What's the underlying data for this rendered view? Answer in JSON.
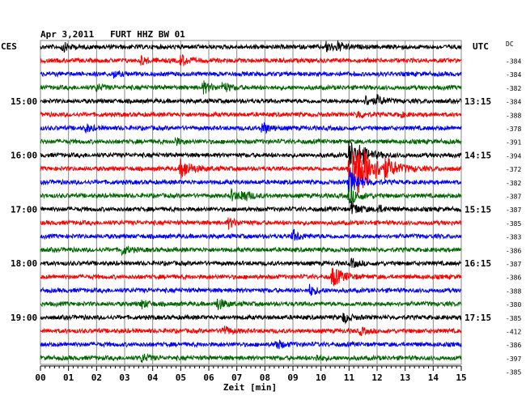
{
  "header": {
    "title": "Apr 3,2011   FURT HHZ BW 01",
    "left_tz": "CES",
    "right_tz": "UTC",
    "dc_label": "DC"
  },
  "colors": {
    "trace_cycle": [
      "#000000",
      "#ff0000",
      "#0000ff",
      "#006600"
    ],
    "grid": "#888888",
    "text": "#000000"
  },
  "chart_data": {
    "type": "line",
    "title": "Apr 3,2011   FURT HHZ BW 01",
    "xlabel": "Zeit [min]",
    "ylabel": "",
    "x_ticks": [
      "00",
      "01",
      "02",
      "03",
      "04",
      "05",
      "06",
      "07",
      "08",
      "09",
      "10",
      "11",
      "12",
      "13",
      "14",
      "15"
    ],
    "xlim": [
      0,
      15
    ],
    "left_hour_labels": [
      "15:00",
      "16:00",
      "17:00",
      "18:00",
      "19:00"
    ],
    "right_hour_labels": [
      "13:15",
      "14:15",
      "15:15",
      "16:15",
      "17:15"
    ],
    "hour_label_trace_index": [
      4,
      8,
      12,
      16,
      20
    ],
    "traces": [
      {
        "dc": "-384",
        "events": [
          {
            "t": 0.8,
            "a": 5
          },
          {
            "t": 10.2,
            "a": 6
          },
          {
            "t": 10.6,
            "a": 5
          }
        ]
      },
      {
        "dc": "-384",
        "events": [
          {
            "t": 5.0,
            "a": 7
          },
          {
            "t": 3.6,
            "a": 5
          }
        ]
      },
      {
        "dc": "-382",
        "events": [
          {
            "t": 2.6,
            "a": 4
          }
        ]
      },
      {
        "dc": "-384",
        "events": [
          {
            "t": 5.8,
            "a": 7
          },
          {
            "t": 6.5,
            "a": 6
          },
          {
            "t": 2.0,
            "a": 4
          }
        ]
      },
      {
        "dc": "-388",
        "events": [
          {
            "t": 11.6,
            "a": 6
          },
          {
            "t": 12.0,
            "a": 5
          }
        ]
      },
      {
        "dc": "-378",
        "events": [
          {
            "t": 11.3,
            "a": 5
          },
          {
            "t": 12.8,
            "a": 3
          }
        ]
      },
      {
        "dc": "-391",
        "events": [
          {
            "t": 1.6,
            "a": 5
          },
          {
            "t": 7.9,
            "a": 7
          }
        ]
      },
      {
        "dc": "-394",
        "events": [
          {
            "t": 4.8,
            "a": 4
          }
        ]
      },
      {
        "dc": "-372",
        "events": [
          {
            "t": 11.0,
            "a": 18
          },
          {
            "t": 11.4,
            "a": 5
          }
        ]
      },
      {
        "dc": "-382",
        "events": [
          {
            "t": 5.0,
            "a": 12
          },
          {
            "t": 11.0,
            "a": 32
          },
          {
            "t": 11.3,
            "a": 14
          },
          {
            "t": 12.3,
            "a": 8
          }
        ]
      },
      {
        "dc": "-387",
        "events": [
          {
            "t": 11.0,
            "a": 14
          }
        ]
      },
      {
        "dc": "-387",
        "events": [
          {
            "t": 7.2,
            "a": 7
          },
          {
            "t": 6.8,
            "a": 6
          },
          {
            "t": 11.0,
            "a": 10
          }
        ]
      },
      {
        "dc": "-385",
        "events": [
          {
            "t": 11.1,
            "a": 8
          },
          {
            "t": 12.0,
            "a": 5
          }
        ]
      },
      {
        "dc": "-383",
        "events": [
          {
            "t": 6.7,
            "a": 6
          }
        ]
      },
      {
        "dc": "-386",
        "events": [
          {
            "t": 9.0,
            "a": 7
          }
        ]
      },
      {
        "dc": "-387",
        "events": [
          {
            "t": 2.9,
            "a": 6
          }
        ]
      },
      {
        "dc": "-386",
        "events": [
          {
            "t": 11.1,
            "a": 5
          }
        ]
      },
      {
        "dc": "-388",
        "events": [
          {
            "t": 10.4,
            "a": 12
          }
        ]
      },
      {
        "dc": "-380",
        "events": [
          {
            "t": 9.6,
            "a": 6
          }
        ]
      },
      {
        "dc": "-385",
        "events": [
          {
            "t": 6.3,
            "a": 7
          },
          {
            "t": 3.6,
            "a": 5
          }
        ]
      },
      {
        "dc": "-412",
        "events": [
          {
            "t": 10.8,
            "a": 6
          }
        ]
      },
      {
        "dc": "-386",
        "events": [
          {
            "t": 6.5,
            "a": 6
          },
          {
            "t": 11.4,
            "a": 4
          }
        ]
      },
      {
        "dc": "-397",
        "events": [
          {
            "t": 8.4,
            "a": 6
          }
        ]
      },
      {
        "dc": "-385",
        "events": [
          {
            "t": 3.6,
            "a": 5
          },
          {
            "t": 9.8,
            "a": 4
          }
        ]
      }
    ]
  }
}
